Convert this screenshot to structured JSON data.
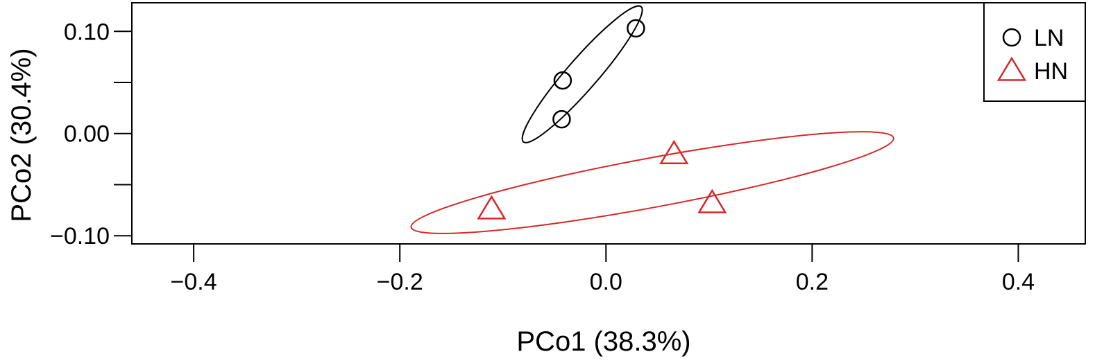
{
  "chart_data": {
    "type": "scatter",
    "xlabel": "PCo1 (38.3%)",
    "ylabel": "PCo2 (30.4%)",
    "xlim": [
      -0.46,
      0.465
    ],
    "ylim": [
      -0.108,
      0.128
    ],
    "x_ticks": [
      -0.4,
      -0.2,
      0.0,
      0.2,
      0.4
    ],
    "x_tick_labels": [
      "−0.4",
      "−0.2",
      "0.0",
      "0.2",
      "0.4"
    ],
    "y_ticks": [
      0.1,
      0.05,
      0.0,
      -0.05,
      -0.1
    ],
    "y_tick_labels": [
      "0.10",
      "",
      "0.00",
      "",
      "−0.10"
    ],
    "grid": false,
    "legend_position": "top-right",
    "series": [
      {
        "name": "LN",
        "marker": "circle",
        "color": "#000000",
        "points": [
          {
            "x": 0.029,
            "y": 0.103
          },
          {
            "x": -0.042,
            "y": 0.052
          },
          {
            "x": -0.043,
            "y": 0.014
          }
        ],
        "ellipse": {
          "cx": -0.023,
          "cy": 0.058,
          "rx": 0.087,
          "ry": 0.015,
          "angle_deg": -49
        }
      },
      {
        "name": "HN",
        "marker": "triangle",
        "color": "#d62728",
        "points": [
          {
            "x": 0.066,
            "y": -0.02
          },
          {
            "x": 0.103,
            "y": -0.068
          },
          {
            "x": -0.111,
            "y": -0.074
          }
        ],
        "ellipse": {
          "cx": 0.045,
          "cy": -0.048,
          "rx": 0.238,
          "ry": 0.024,
          "angle_deg": -10.5
        }
      }
    ]
  }
}
